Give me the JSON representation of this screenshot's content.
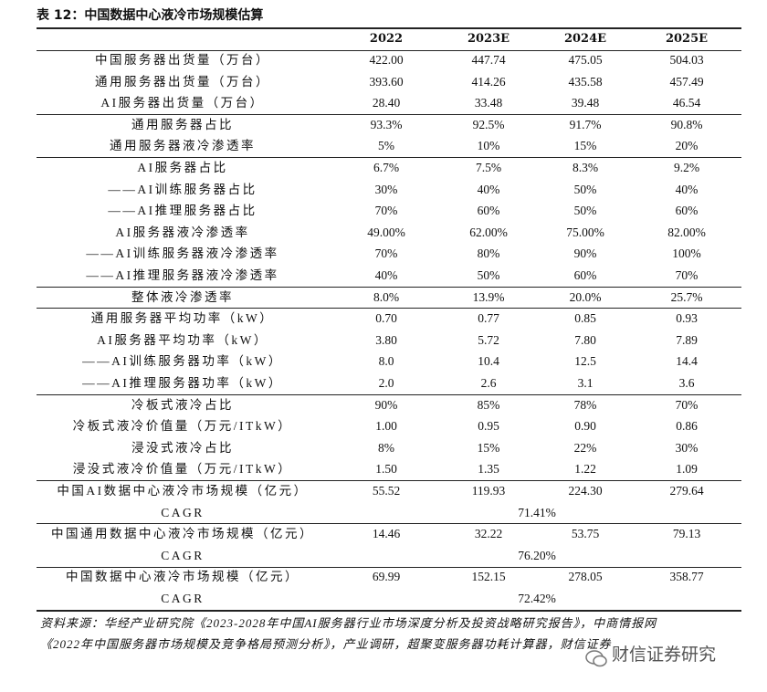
{
  "header": {
    "title": "表 12：中国数据中心液冷市场规模估算"
  },
  "table": {
    "columns": [
      "2022",
      "2023E",
      "2024E",
      "2025E"
    ],
    "groups": [
      [
        {
          "label": "中国服务器出货量（万台）",
          "values": [
            "422.00",
            "447.74",
            "475.05",
            "504.03"
          ]
        },
        {
          "label": "通用服务器出货量（万台）",
          "values": [
            "393.60",
            "414.26",
            "435.58",
            "457.49"
          ]
        },
        {
          "label": "AI服务器出货量（万台）",
          "values": [
            "28.40",
            "33.48",
            "39.48",
            "46.54"
          ]
        }
      ],
      [
        {
          "label": "通用服务器占比",
          "values": [
            "93.3%",
            "92.5%",
            "91.7%",
            "90.8%"
          ]
        },
        {
          "label": "通用服务器液冷渗透率",
          "values": [
            "5%",
            "10%",
            "15%",
            "20%"
          ]
        }
      ],
      [
        {
          "label": "AI服务器占比",
          "values": [
            "6.7%",
            "7.5%",
            "8.3%",
            "9.2%"
          ]
        },
        {
          "label": "——AI训练服务器占比",
          "values": [
            "30%",
            "40%",
            "50%",
            "40%"
          ]
        },
        {
          "label": "——AI推理服务器占比",
          "values": [
            "70%",
            "60%",
            "50%",
            "60%"
          ]
        },
        {
          "label": "AI服务器液冷渗透率",
          "values": [
            "49.00%",
            "62.00%",
            "75.00%",
            "82.00%"
          ]
        },
        {
          "label": "——AI训练服务器液冷渗透率",
          "values": [
            "70%",
            "80%",
            "90%",
            "100%"
          ]
        },
        {
          "label": "——AI推理服务器液冷渗透率",
          "values": [
            "40%",
            "50%",
            "60%",
            "70%"
          ]
        }
      ],
      [
        {
          "label": "整体液冷渗透率",
          "values": [
            "8.0%",
            "13.9%",
            "20.0%",
            "25.7%"
          ]
        }
      ],
      [
        {
          "label": "通用服务器平均功率（kW）",
          "values": [
            "0.70",
            "0.77",
            "0.85",
            "0.93"
          ]
        },
        {
          "label": "AI服务器平均功率（kW）",
          "values": [
            "3.80",
            "5.72",
            "7.80",
            "7.89"
          ]
        },
        {
          "label": "——AI训练服务器功率（kW）",
          "values": [
            "8.0",
            "10.4",
            "12.5",
            "14.4"
          ]
        },
        {
          "label": "——AI推理服务器功率（kW）",
          "values": [
            "2.0",
            "2.6",
            "3.1",
            "3.6"
          ]
        }
      ],
      [
        {
          "label": "冷板式液冷占比",
          "values": [
            "90%",
            "85%",
            "78%",
            "70%"
          ]
        },
        {
          "label": "冷板式液冷价值量（万元/ITkW）",
          "values": [
            "1.00",
            "0.95",
            "0.90",
            "0.86"
          ]
        },
        {
          "label": "浸没式液冷占比",
          "values": [
            "8%",
            "15%",
            "22%",
            "30%"
          ]
        },
        {
          "label": "浸没式液冷价值量（万元/ITkW）",
          "values": [
            "1.50",
            "1.35",
            "1.22",
            "1.09"
          ]
        }
      ],
      [
        {
          "label": "中国AI数据中心液冷市场规模（亿元）",
          "values": [
            "55.52",
            "119.93",
            "224.30",
            "279.64"
          ]
        },
        {
          "label": "CAGR",
          "cagr": "71.41%"
        }
      ],
      [
        {
          "label": "中国通用数据中心液冷市场规模（亿元）",
          "values": [
            "14.46",
            "32.22",
            "53.75",
            "79.13"
          ]
        },
        {
          "label": "CAGR",
          "cagr": "76.20%"
        }
      ],
      [
        {
          "label": "中国数据中心液冷市场规模（亿元）",
          "values": [
            "69.99",
            "152.15",
            "278.05",
            "358.77"
          ]
        },
        {
          "label": "CAGR",
          "cagr": "72.42%"
        }
      ]
    ]
  },
  "footer": {
    "source": [
      "资料来源：华经产业研究院《2023-2028年中国AI服务器行业市场深度分析及投资战略研究报告》，中商情报网",
      "《2022年中国服务器市场规模及竞争格局预测分析》，产业调研，超聚变服务器功耗计算器，财信证券"
    ],
    "watermark": "财信证券研究"
  }
}
